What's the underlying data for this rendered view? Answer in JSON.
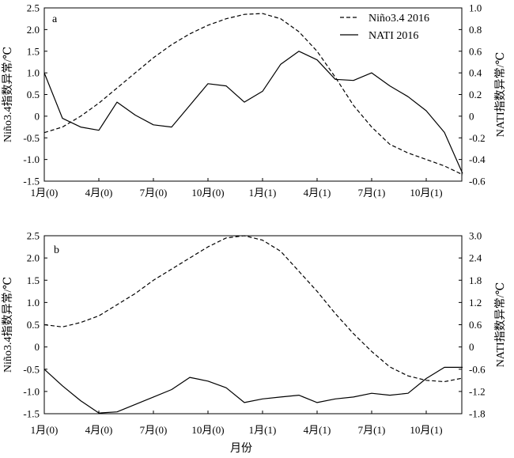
{
  "figure": {
    "xlabel": "月份"
  },
  "chart_data": [
    {
      "type": "line",
      "panel_label": "a",
      "x_ticks": [
        "1月(0)",
        "4月(0)",
        "7月(0)",
        "10月(0)",
        "1月(1)",
        "4月(1)",
        "7月(1)",
        "10月(1)"
      ],
      "x": [
        "1月(0)",
        "2月(0)",
        "3月(0)",
        "4月(0)",
        "5月(0)",
        "6月(0)",
        "7月(0)",
        "8月(0)",
        "9月(0)",
        "10月(0)",
        "11月(0)",
        "12月(0)",
        "1月(1)",
        "2月(1)",
        "3月(1)",
        "4月(1)",
        "5月(1)",
        "6月(1)",
        "7月(1)",
        "8月(1)",
        "9月(1)",
        "10月(1)",
        "11月(1)",
        "12月(1)"
      ],
      "left_axis": {
        "label": "Niño3.4指数异常/℃",
        "ylim": [
          -1.5,
          2.5
        ],
        "ticks": [
          "2.5",
          "2.0",
          "1.5",
          "1.0",
          "0.5",
          "0",
          "-0.5",
          "-1.0",
          "-1.5"
        ]
      },
      "right_axis": {
        "label": "NATI指数异常/℃",
        "ylim": [
          -0.6,
          1.0
        ],
        "ticks": [
          "1.0",
          "0.8",
          "0.6",
          "0.4",
          "0.2",
          "0",
          "-0.2",
          "-0.4",
          "-0.6"
        ]
      },
      "legend_position": "top-right",
      "series": [
        {
          "name": "Niño3.4 2016",
          "axis": "left",
          "style": "dashed",
          "values": [
            -0.38,
            -0.25,
            0.0,
            0.3,
            0.65,
            1.0,
            1.35,
            1.65,
            1.9,
            2.1,
            2.25,
            2.35,
            2.37,
            2.25,
            1.95,
            1.5,
            0.9,
            0.25,
            -0.25,
            -0.65,
            -0.85,
            -1.0,
            -1.15,
            -1.35
          ]
        },
        {
          "name": "NATI 2016",
          "axis": "right",
          "style": "solid",
          "values": [
            0.4,
            -0.02,
            -0.1,
            -0.13,
            0.13,
            0.01,
            -0.08,
            -0.1,
            0.1,
            0.3,
            0.28,
            0.13,
            0.23,
            0.48,
            0.6,
            0.52,
            0.34,
            0.33,
            0.4,
            0.28,
            0.18,
            0.05,
            -0.15,
            -0.53
          ]
        }
      ]
    },
    {
      "type": "line",
      "panel_label": "b",
      "x_ticks": [
        "1月(0)",
        "4月(0)",
        "7月(0)",
        "10月(0)",
        "1月(1)",
        "4月(1)",
        "7月(1)",
        "10月(1)"
      ],
      "x": [
        "1月(0)",
        "2月(0)",
        "3月(0)",
        "4月(0)",
        "5月(0)",
        "6月(0)",
        "7月(0)",
        "8月(0)",
        "9月(0)",
        "10月(0)",
        "11月(0)",
        "12月(0)",
        "1月(1)",
        "2月(1)",
        "3月(1)",
        "4月(1)",
        "5月(1)",
        "6月(1)",
        "7月(1)",
        "8月(1)",
        "9月(1)",
        "10月(1)",
        "11月(1)",
        "12月(1)"
      ],
      "left_axis": {
        "label": "Niño3.4指数异常/℃",
        "ylim": [
          -1.5,
          2.5
        ],
        "ticks": [
          "2.5",
          "2.0",
          "1.5",
          "1.0",
          "0.5",
          "0",
          "-0.5",
          "-1.0",
          "-1.5"
        ]
      },
      "right_axis": {
        "label": "NATI指数异常/℃",
        "ylim": [
          -1.8,
          3.0
        ],
        "ticks": [
          "3.0",
          "2.4",
          "1.8",
          "1.2",
          "0.6",
          "0",
          "-0.6",
          "-1.2",
          "-1.8"
        ]
      },
      "series": [
        {
          "name": "Niño3.4",
          "axis": "left",
          "style": "dashed",
          "values": [
            0.5,
            0.45,
            0.55,
            0.7,
            0.95,
            1.2,
            1.5,
            1.75,
            2.0,
            2.25,
            2.45,
            2.5,
            2.4,
            2.15,
            1.7,
            1.25,
            0.75,
            0.3,
            -0.1,
            -0.45,
            -0.65,
            -0.75,
            -0.78,
            -0.7
          ]
        },
        {
          "name": "NATI",
          "axis": "right",
          "style": "solid",
          "values": [
            -0.6,
            -1.05,
            -1.45,
            -1.78,
            -1.75,
            -1.55,
            -1.35,
            -1.15,
            -0.82,
            -0.92,
            -1.1,
            -1.5,
            -1.4,
            -1.35,
            -1.3,
            -1.5,
            -1.4,
            -1.35,
            -1.25,
            -1.3,
            -1.25,
            -0.85,
            -0.55,
            -0.55
          ]
        }
      ]
    }
  ]
}
